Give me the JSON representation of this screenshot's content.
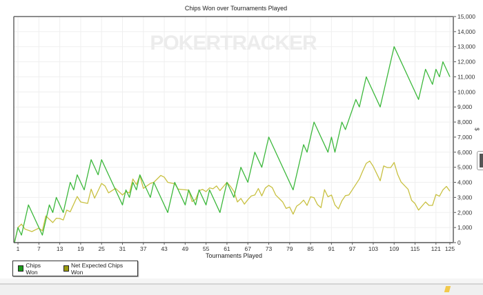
{
  "chart_data": {
    "type": "line",
    "title": "Chips Won over Tournaments Played",
    "xlabel": "Tournaments Played",
    "ylabel": "$",
    "watermark": "POKERTRACKER",
    "xlim": [
      0,
      125
    ],
    "ylim": [
      0,
      15000
    ],
    "x_ticks": [
      1,
      7,
      13,
      19,
      25,
      31,
      37,
      43,
      49,
      55,
      61,
      67,
      73,
      79,
      85,
      91,
      97,
      103,
      109,
      115,
      121,
      125
    ],
    "y_ticks": [
      0,
      1000,
      2000,
      3000,
      4000,
      5000,
      6000,
      7000,
      8000,
      9000,
      10000,
      11000,
      12000,
      13000,
      14000,
      15000
    ],
    "y_tick_labels": [
      "0",
      "1,000",
      "2,000",
      "3,000",
      "4,000",
      "5,000",
      "6,000",
      "7,000",
      "8,000",
      "9,000",
      "10,000",
      "11,000",
      "12,000",
      "13,000",
      "14,000",
      "15,000"
    ],
    "grid": true,
    "legend_position": "bottom-left",
    "series": [
      {
        "name": "Chips Won",
        "color": "#3cb83c",
        "swatch": "#1a9a1a",
        "points": [
          [
            0,
            0
          ],
          [
            1,
            1000
          ],
          [
            2,
            500
          ],
          [
            4,
            2500
          ],
          [
            8,
            500
          ],
          [
            10,
            2500
          ],
          [
            11,
            2000
          ],
          [
            12,
            3000
          ],
          [
            14,
            2000
          ],
          [
            16,
            4000
          ],
          [
            17,
            3500
          ],
          [
            18,
            4500
          ],
          [
            20,
            3500
          ],
          [
            22,
            5500
          ],
          [
            24,
            4500
          ],
          [
            25,
            5500
          ],
          [
            31,
            2500
          ],
          [
            32,
            3500
          ],
          [
            33,
            3000
          ],
          [
            34,
            4000
          ],
          [
            35,
            3500
          ],
          [
            36,
            4500
          ],
          [
            39,
            3000
          ],
          [
            40,
            4000
          ],
          [
            44,
            2000
          ],
          [
            46,
            4000
          ],
          [
            49,
            2500
          ],
          [
            50,
            3500
          ],
          [
            52,
            2500
          ],
          [
            53,
            3500
          ],
          [
            55,
            2500
          ],
          [
            56,
            3500
          ],
          [
            59,
            2000
          ],
          [
            61,
            4000
          ],
          [
            63,
            3000
          ],
          [
            65,
            5000
          ],
          [
            67,
            4000
          ],
          [
            69,
            6000
          ],
          [
            71,
            5000
          ],
          [
            73,
            7000
          ],
          [
            80,
            3500
          ],
          [
            83,
            6500
          ],
          [
            84,
            6000
          ],
          [
            86,
            8000
          ],
          [
            90,
            6000
          ],
          [
            91,
            7000
          ],
          [
            92,
            6000
          ],
          [
            94,
            8000
          ],
          [
            95,
            7500
          ],
          [
            98,
            9500
          ],
          [
            99,
            9000
          ],
          [
            101,
            11000
          ],
          [
            105,
            9000
          ],
          [
            109,
            13000
          ],
          [
            116,
            9500
          ],
          [
            118,
            11500
          ],
          [
            120,
            10500
          ],
          [
            121,
            11500
          ],
          [
            122,
            11000
          ],
          [
            123,
            12000
          ],
          [
            125,
            11000
          ]
        ]
      },
      {
        "name": "Net Expected Chips Won",
        "color": "#c8c040",
        "swatch": "#9a9a10",
        "points": [
          [
            0,
            0
          ],
          [
            1,
            1000
          ],
          [
            2,
            1230
          ],
          [
            3,
            900
          ],
          [
            5,
            730
          ],
          [
            6,
            850
          ],
          [
            7,
            960
          ],
          [
            8,
            780
          ],
          [
            9,
            1770
          ],
          [
            11,
            1330
          ],
          [
            12,
            1620
          ],
          [
            13,
            1600
          ],
          [
            14,
            1500
          ],
          [
            15,
            2160
          ],
          [
            16,
            2050
          ],
          [
            18,
            3060
          ],
          [
            19,
            2700
          ],
          [
            21,
            2600
          ],
          [
            22,
            3550
          ],
          [
            23,
            2950
          ],
          [
            25,
            3930
          ],
          [
            26,
            3760
          ],
          [
            27,
            3300
          ],
          [
            29,
            3600
          ],
          [
            31,
            3160
          ],
          [
            32,
            3380
          ],
          [
            33,
            3300
          ],
          [
            34,
            4220
          ],
          [
            35,
            3850
          ],
          [
            36,
            4450
          ],
          [
            37,
            3600
          ],
          [
            39,
            3930
          ],
          [
            40,
            4000
          ],
          [
            42,
            4460
          ],
          [
            43,
            4340
          ],
          [
            44,
            4000
          ],
          [
            46,
            3900
          ],
          [
            47,
            3550
          ],
          [
            50,
            3480
          ],
          [
            51,
            2720
          ],
          [
            52,
            2870
          ],
          [
            53,
            3450
          ],
          [
            54,
            3530
          ],
          [
            55,
            3380
          ],
          [
            56,
            3630
          ],
          [
            57,
            3570
          ],
          [
            58,
            3760
          ],
          [
            59,
            3450
          ],
          [
            61,
            4000
          ],
          [
            62,
            3730
          ],
          [
            63,
            3400
          ],
          [
            64,
            2700
          ],
          [
            65,
            2930
          ],
          [
            66,
            2550
          ],
          [
            67,
            2850
          ],
          [
            68,
            3100
          ],
          [
            69,
            3160
          ],
          [
            70,
            3590
          ],
          [
            71,
            3100
          ],
          [
            72,
            3620
          ],
          [
            73,
            3800
          ],
          [
            74,
            3650
          ],
          [
            75,
            3160
          ],
          [
            77,
            2700
          ],
          [
            78,
            2270
          ],
          [
            79,
            2360
          ],
          [
            80,
            1890
          ],
          [
            81,
            2420
          ],
          [
            82,
            2580
          ],
          [
            83,
            2820
          ],
          [
            84,
            2470
          ],
          [
            85,
            3040
          ],
          [
            86,
            2980
          ],
          [
            87,
            2520
          ],
          [
            88,
            2320
          ],
          [
            89,
            3510
          ],
          [
            90,
            3040
          ],
          [
            91,
            3160
          ],
          [
            92,
            2500
          ],
          [
            93,
            2240
          ],
          [
            94,
            2770
          ],
          [
            95,
            3120
          ],
          [
            96,
            3160
          ],
          [
            97,
            3510
          ],
          [
            99,
            4220
          ],
          [
            100,
            4760
          ],
          [
            101,
            5260
          ],
          [
            102,
            5410
          ],
          [
            103,
            5060
          ],
          [
            105,
            4100
          ],
          [
            106,
            5090
          ],
          [
            107,
            4980
          ],
          [
            108,
            4980
          ],
          [
            109,
            5320
          ],
          [
            110,
            4530
          ],
          [
            111,
            4020
          ],
          [
            113,
            3540
          ],
          [
            114,
            2810
          ],
          [
            115,
            2590
          ],
          [
            116,
            2160
          ],
          [
            118,
            2700
          ],
          [
            119,
            2470
          ],
          [
            120,
            2470
          ],
          [
            121,
            3190
          ],
          [
            122,
            3080
          ],
          [
            123,
            3500
          ],
          [
            124,
            3730
          ],
          [
            125,
            3410
          ]
        ]
      }
    ]
  }
}
